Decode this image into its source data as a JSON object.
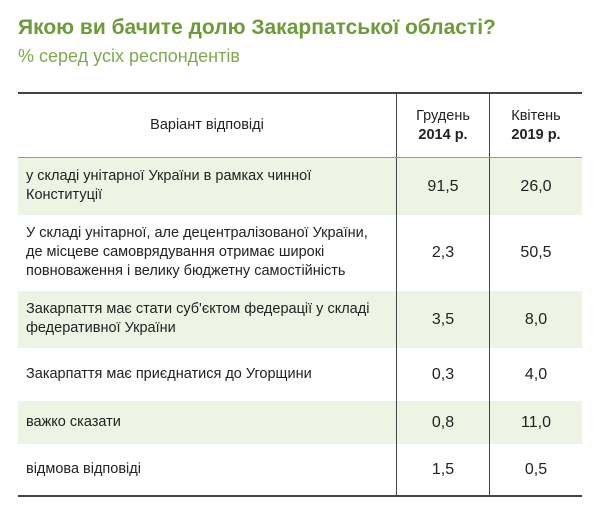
{
  "header": {
    "title": "Якою ви бачите долю Закарпатської області?",
    "subtitle": "% серед усіх респондентів"
  },
  "table": {
    "header": [
      "Варіант відповіді",
      {
        "line1": "Грудень",
        "line2": "2014 р."
      },
      {
        "line1": "Квітень",
        "line2": "2019 р."
      }
    ],
    "rows": [
      [
        "у складі унітарної України в рамках чинної Конституції",
        "91,5",
        "26,0"
      ],
      [
        "У складі унітарної, але децентралізованої України, де місцеве самоврядування отримає широкі повноваження і велику бюджетну самостійність",
        "2,3",
        "50,5"
      ],
      [
        "Закарпаття має стати суб'єктом федерації у складі федеративної України",
        "3,5",
        "8,0"
      ],
      [
        "Закарпаття має приєднатися до Угорщини",
        "0,3",
        "4,0"
      ],
      [
        "важко сказати",
        "0,8",
        "11,0"
      ],
      [
        "відмова відповіді",
        "1,5",
        "0,5"
      ]
    ]
  }
}
